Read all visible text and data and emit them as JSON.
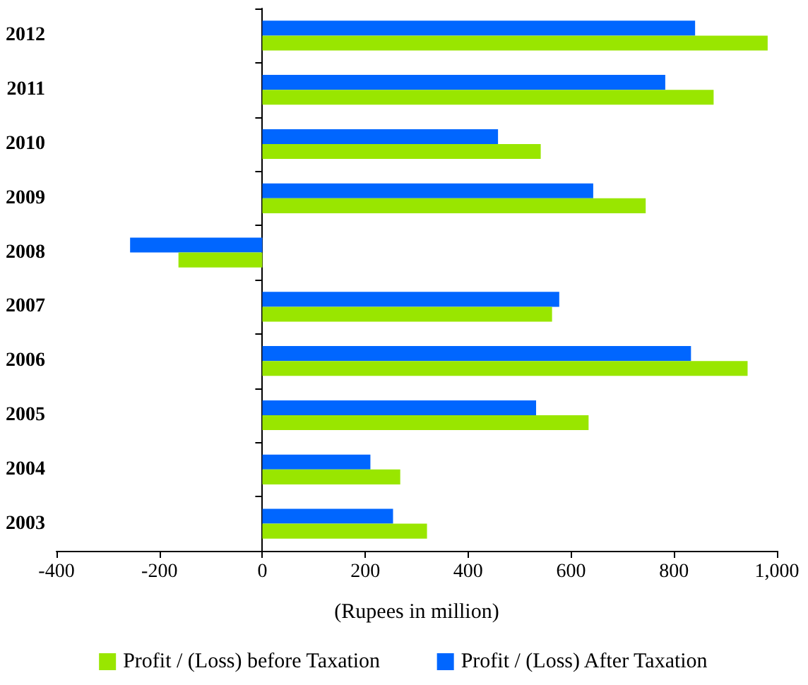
{
  "chart_data": {
    "type": "bar",
    "orientation": "horizontal",
    "categories": [
      "2012",
      "2011",
      "2010",
      "2009",
      "2008",
      "2007",
      "2006",
      "2005",
      "2004",
      "2003"
    ],
    "series": [
      {
        "name": "Profit / (Loss) before Taxation",
        "color": "#99e600",
        "values": [
          982,
          877,
          541,
          745,
          -163,
          563,
          943,
          634,
          268,
          320
        ]
      },
      {
        "name": "Profit / (Loss) After Taxation",
        "color": "#0066ff",
        "values": [
          841,
          783,
          458,
          643,
          -257,
          577,
          833,
          532,
          210,
          254
        ]
      }
    ],
    "xlabel": "(Rupees in million)",
    "xlim": [
      -400,
      1000
    ],
    "xticks": [
      -400,
      -200,
      0,
      200,
      400,
      600,
      800,
      {
        "value": 1000,
        "label": "1,000"
      }
    ],
    "legend": "bottom"
  }
}
